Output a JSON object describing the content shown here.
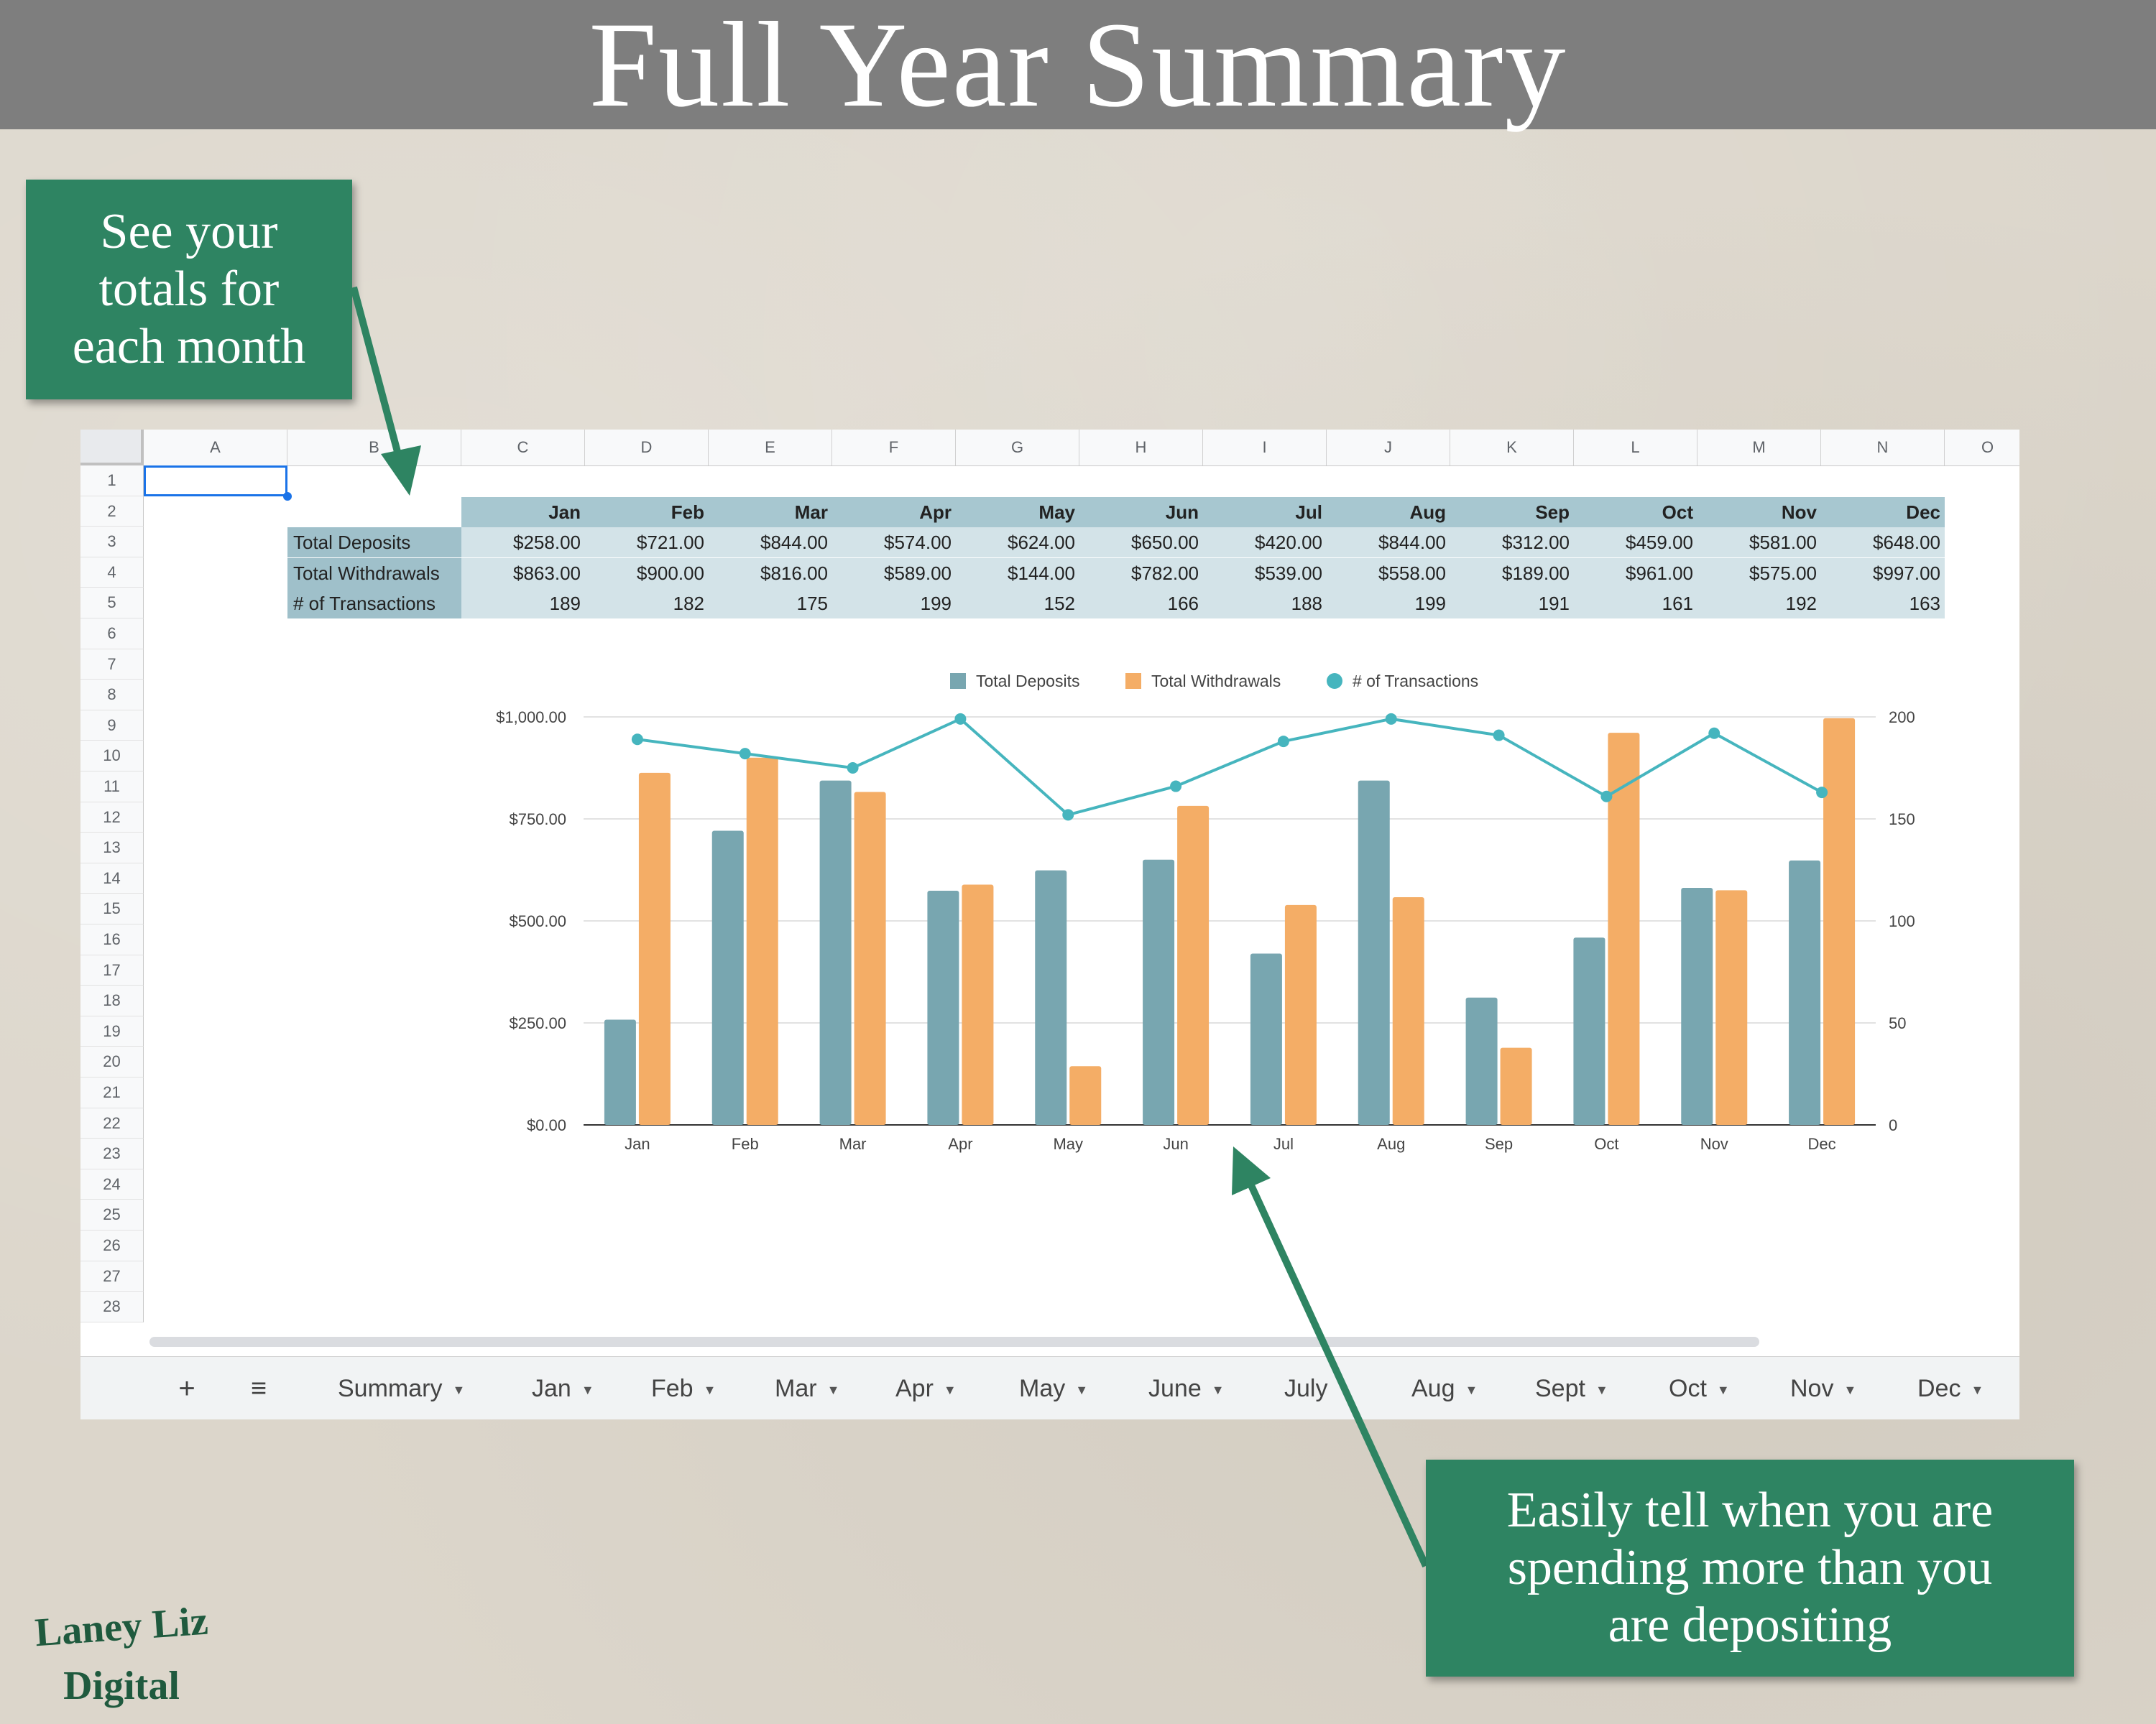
{
  "page": {
    "title": "Full Year Summary",
    "callout_top": "See your\ntotals for\neach month",
    "callout_bottom": "Easily tell when you are\nspending more than you\nare depositing",
    "brand_line1": "Laney Liz",
    "brand_line2": "Digital",
    "callout_color": "#2e8462",
    "title_bar_color": "#7e7e7e"
  },
  "sheet": {
    "columns": [
      "A",
      "B",
      "C",
      "D",
      "E",
      "F",
      "G",
      "H",
      "I",
      "J",
      "K",
      "L",
      "M",
      "N",
      "O"
    ],
    "rows": [
      "1",
      "2",
      "3",
      "4",
      "5",
      "6",
      "7",
      "8",
      "9",
      "10",
      "11",
      "12",
      "13",
      "14",
      "15",
      "16",
      "17",
      "18",
      "19",
      "20",
      "21",
      "22",
      "23",
      "24",
      "25",
      "26",
      "27",
      "28"
    ],
    "table": {
      "months": [
        "Jan",
        "Feb",
        "Mar",
        "Apr",
        "May",
        "Jun",
        "Jul",
        "Aug",
        "Sep",
        "Oct",
        "Nov",
        "Dec"
      ],
      "rows": [
        {
          "label": "Total Deposits",
          "values": [
            "$258.00",
            "$721.00",
            "$844.00",
            "$574.00",
            "$624.00",
            "$650.00",
            "$420.00",
            "$844.00",
            "$312.00",
            "$459.00",
            "$581.00",
            "$648.00"
          ]
        },
        {
          "label": "Total Withdrawals",
          "values": [
            "$863.00",
            "$900.00",
            "$816.00",
            "$589.00",
            "$144.00",
            "$782.00",
            "$539.00",
            "$558.00",
            "$189.00",
            "$961.00",
            "$575.00",
            "$997.00"
          ]
        },
        {
          "label": "# of Transactions",
          "values": [
            "189",
            "182",
            "175",
            "199",
            "152",
            "166",
            "188",
            "199",
            "191",
            "161",
            "192",
            "163"
          ]
        }
      ]
    },
    "tabs": [
      {
        "label": "Summary"
      },
      {
        "label": "Jan"
      },
      {
        "label": "Feb"
      },
      {
        "label": "Mar"
      },
      {
        "label": "Apr"
      },
      {
        "label": "May"
      },
      {
        "label": "June"
      },
      {
        "label": "July"
      },
      {
        "label": "Aug"
      },
      {
        "label": "Sept"
      },
      {
        "label": "Oct"
      },
      {
        "label": "Nov"
      },
      {
        "label": "Dec"
      }
    ],
    "add_sheet_icon": "plus-icon",
    "all_sheets_icon": "menu-icon"
  },
  "chart_data": {
    "type": "bar",
    "categories": [
      "Jan",
      "Feb",
      "Mar",
      "Apr",
      "May",
      "Jun",
      "Jul",
      "Aug",
      "Sep",
      "Oct",
      "Nov",
      "Dec"
    ],
    "series": [
      {
        "name": "Total Deposits",
        "type": "bar",
        "axis": "left",
        "color": "#78a6b0",
        "values": [
          258,
          721,
          844,
          574,
          624,
          650,
          420,
          844,
          312,
          459,
          581,
          648
        ]
      },
      {
        "name": "Total Withdrawals",
        "type": "bar",
        "axis": "left",
        "color": "#f4ad66",
        "values": [
          863,
          900,
          816,
          589,
          144,
          782,
          539,
          558,
          189,
          961,
          575,
          997
        ]
      },
      {
        "name": "# of Transactions",
        "type": "line",
        "axis": "right",
        "color": "#46b5be",
        "values": [
          189,
          182,
          175,
          199,
          152,
          166,
          188,
          199,
          191,
          161,
          192,
          163
        ]
      }
    ],
    "ylim": [
      0,
      1000
    ],
    "y_ticks": [
      "$0.00",
      "$250.00",
      "$500.00",
      "$750.00",
      "$1,000.00"
    ],
    "y2lim": [
      0,
      200
    ],
    "y2_ticks": [
      "0",
      "50",
      "100",
      "150",
      "200"
    ],
    "legend_position": "top",
    "grid": true
  }
}
